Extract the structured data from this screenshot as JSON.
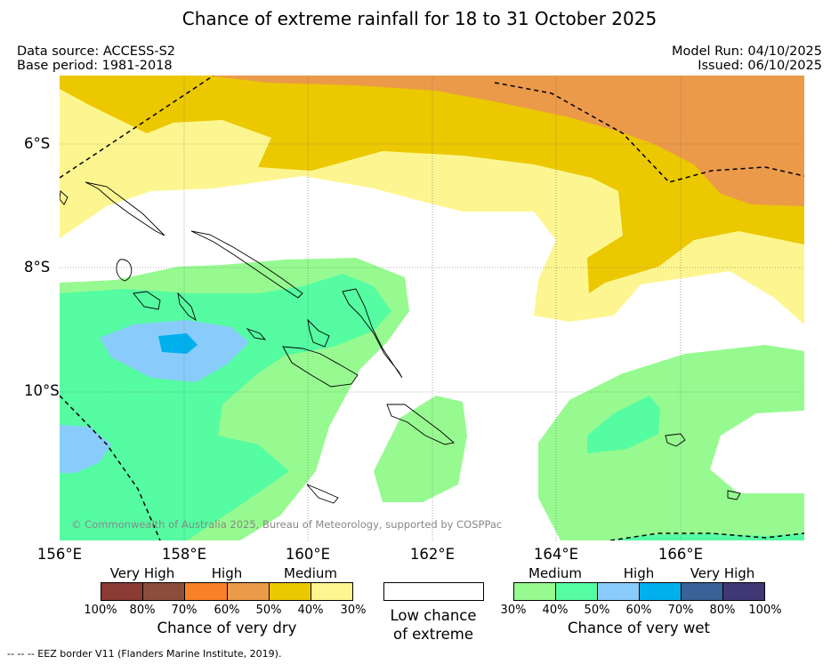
{
  "title": "Chance of extreme rainfall for 18 to 31 October 2025",
  "data_source": "Data source: ACCESS-S2",
  "base_period": "Base period: 1981-2018",
  "model_run": "Model Run: 04/10/2025",
  "issued": "Issued: 06/10/2025",
  "copyright": "© Commonwealth of Australia 2025, Bureau of Meteorology, supported by COSPPac",
  "longitudes": [
    "156°E",
    "158°E",
    "160°E",
    "162°E",
    "164°E",
    "166°E"
  ],
  "latitudes": [
    "6°S",
    "8°S",
    "10°S"
  ],
  "dry_legend": {
    "categories": [
      "Very High",
      "High",
      "Medium"
    ],
    "colors": [
      "#8b3a34",
      "#8c4e3b",
      "#f98028",
      "#eb9a4a",
      "#ebc800",
      "#fdf690"
    ],
    "ticks": [
      "100%",
      "80%",
      "70%",
      "60%",
      "50%",
      "40%",
      "30%"
    ],
    "label": "Chance of very dry"
  },
  "low_legend": {
    "line1": "Low chance",
    "line2": "of extreme",
    "color": "#ffffff"
  },
  "wet_legend": {
    "categories": [
      "Medium",
      "High",
      "Very High"
    ],
    "colors": [
      "#97fa90",
      "#55fca2",
      "#89ccfb",
      "#00b0ed",
      "#3a6299",
      "#403875"
    ],
    "ticks": [
      "30%",
      "40%",
      "50%",
      "60%",
      "70%",
      "80%",
      "100%"
    ],
    "label": "Chance of very wet"
  },
  "eez_note": "--  --  -- EEZ border V11 (Flanders Marine Institute, 2019)."
}
